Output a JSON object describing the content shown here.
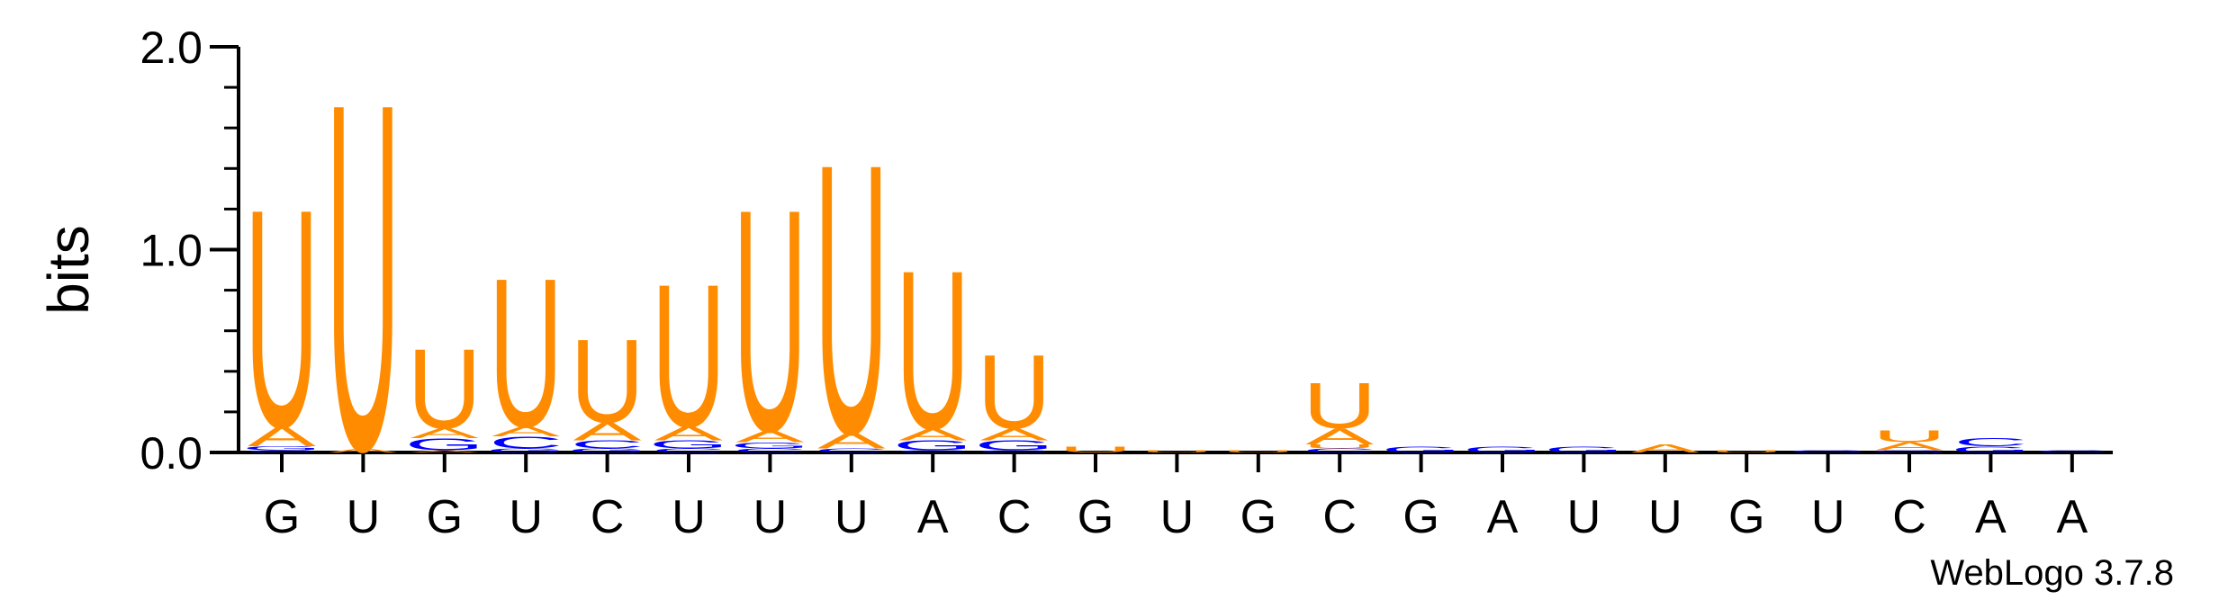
{
  "chart_data": {
    "type": "sequence-logo",
    "ylabel": "bits",
    "ylim": [
      0,
      2.0
    ],
    "yticks": [
      "0.0",
      "1.0",
      "2.0"
    ],
    "sequence": [
      "G",
      "U",
      "G",
      "U",
      "C",
      "U",
      "U",
      "U",
      "A",
      "C",
      "G",
      "U",
      "G",
      "C",
      "G",
      "A",
      "U",
      "U",
      "G",
      "U",
      "C",
      "A",
      "A"
    ],
    "colors": {
      "U": "#ff8c00",
      "A": "#ff8c00",
      "G": "#0000ff",
      "C": "#0000ff"
    },
    "positions": [
      {
        "letters": [
          {
            "l": "C",
            "h": 0.01
          },
          {
            "l": "G",
            "h": 0.02
          },
          {
            "l": "A",
            "h": 0.1
          },
          {
            "l": "U",
            "h": 1.1
          }
        ]
      },
      {
        "letters": [
          {
            "l": "A",
            "h": 0.02
          },
          {
            "l": "U",
            "h": 1.75
          }
        ]
      },
      {
        "letters": [
          {
            "l": "A",
            "h": 0.01
          },
          {
            "l": "G",
            "h": 0.06
          },
          {
            "l": "A",
            "h": 0.05
          },
          {
            "l": "U",
            "h": 0.4
          }
        ]
      },
      {
        "letters": [
          {
            "l": "G",
            "h": 0.02
          },
          {
            "l": "C",
            "h": 0.06
          },
          {
            "l": "A",
            "h": 0.05
          },
          {
            "l": "U",
            "h": 0.75
          }
        ]
      },
      {
        "letters": [
          {
            "l": "G",
            "h": 0.02
          },
          {
            "l": "C",
            "h": 0.04
          },
          {
            "l": "A",
            "h": 0.09
          },
          {
            "l": "U",
            "h": 0.42
          }
        ]
      },
      {
        "letters": [
          {
            "l": "C",
            "h": 0.02
          },
          {
            "l": "G",
            "h": 0.04
          },
          {
            "l": "A",
            "h": 0.07
          },
          {
            "l": "U",
            "h": 0.72
          }
        ]
      },
      {
        "letters": [
          {
            "l": "C",
            "h": 0.02
          },
          {
            "l": "G",
            "h": 0.03
          },
          {
            "l": "A",
            "h": 0.06
          },
          {
            "l": "U",
            "h": 1.12
          }
        ]
      },
      {
        "letters": [
          {
            "l": "C",
            "h": 0.02
          },
          {
            "l": "A",
            "h": 0.08
          },
          {
            "l": "U",
            "h": 1.36
          }
        ]
      },
      {
        "letters": [
          {
            "l": "C",
            "h": 0.01
          },
          {
            "l": "G",
            "h": 0.05
          },
          {
            "l": "A",
            "h": 0.06
          },
          {
            "l": "U",
            "h": 0.8
          }
        ]
      },
      {
        "letters": [
          {
            "l": "C",
            "h": 0.01
          },
          {
            "l": "G",
            "h": 0.05
          },
          {
            "l": "A",
            "h": 0.06
          },
          {
            "l": "U",
            "h": 0.37
          }
        ]
      },
      {
        "letters": [
          {
            "l": "U",
            "h": 0.03
          }
        ]
      },
      {
        "letters": [
          {
            "l": "U",
            "h": 0.01
          }
        ]
      },
      {
        "letters": [
          {
            "l": "U",
            "h": 0.01
          }
        ]
      },
      {
        "letters": [
          {
            "l": "C",
            "h": 0.02
          },
          {
            "l": "U",
            "h": 0.02
          },
          {
            "l": "A",
            "h": 0.08
          },
          {
            "l": "U",
            "h": 0.23
          }
        ]
      },
      {
        "letters": [
          {
            "l": "G",
            "h": 0.03
          }
        ]
      },
      {
        "letters": [
          {
            "l": "G",
            "h": 0.03
          }
        ]
      },
      {
        "letters": [
          {
            "l": "G",
            "h": 0.03
          }
        ]
      },
      {
        "letters": [
          {
            "l": "A",
            "h": 0.04
          }
        ]
      },
      {
        "letters": [
          {
            "l": "U",
            "h": 0.01
          }
        ]
      },
      {
        "letters": [
          {
            "l": "G",
            "h": 0.01
          }
        ]
      },
      {
        "letters": [
          {
            "l": "G",
            "h": 0.01
          },
          {
            "l": "A",
            "h": 0.04
          },
          {
            "l": "U",
            "h": 0.06
          }
        ]
      },
      {
        "letters": [
          {
            "l": "G",
            "h": 0.03
          },
          {
            "l": "C",
            "h": 0.04
          }
        ]
      },
      {
        "letters": [
          {
            "l": "C",
            "h": 0.01
          }
        ]
      }
    ],
    "credit": "WebLogo 3.7.8"
  }
}
